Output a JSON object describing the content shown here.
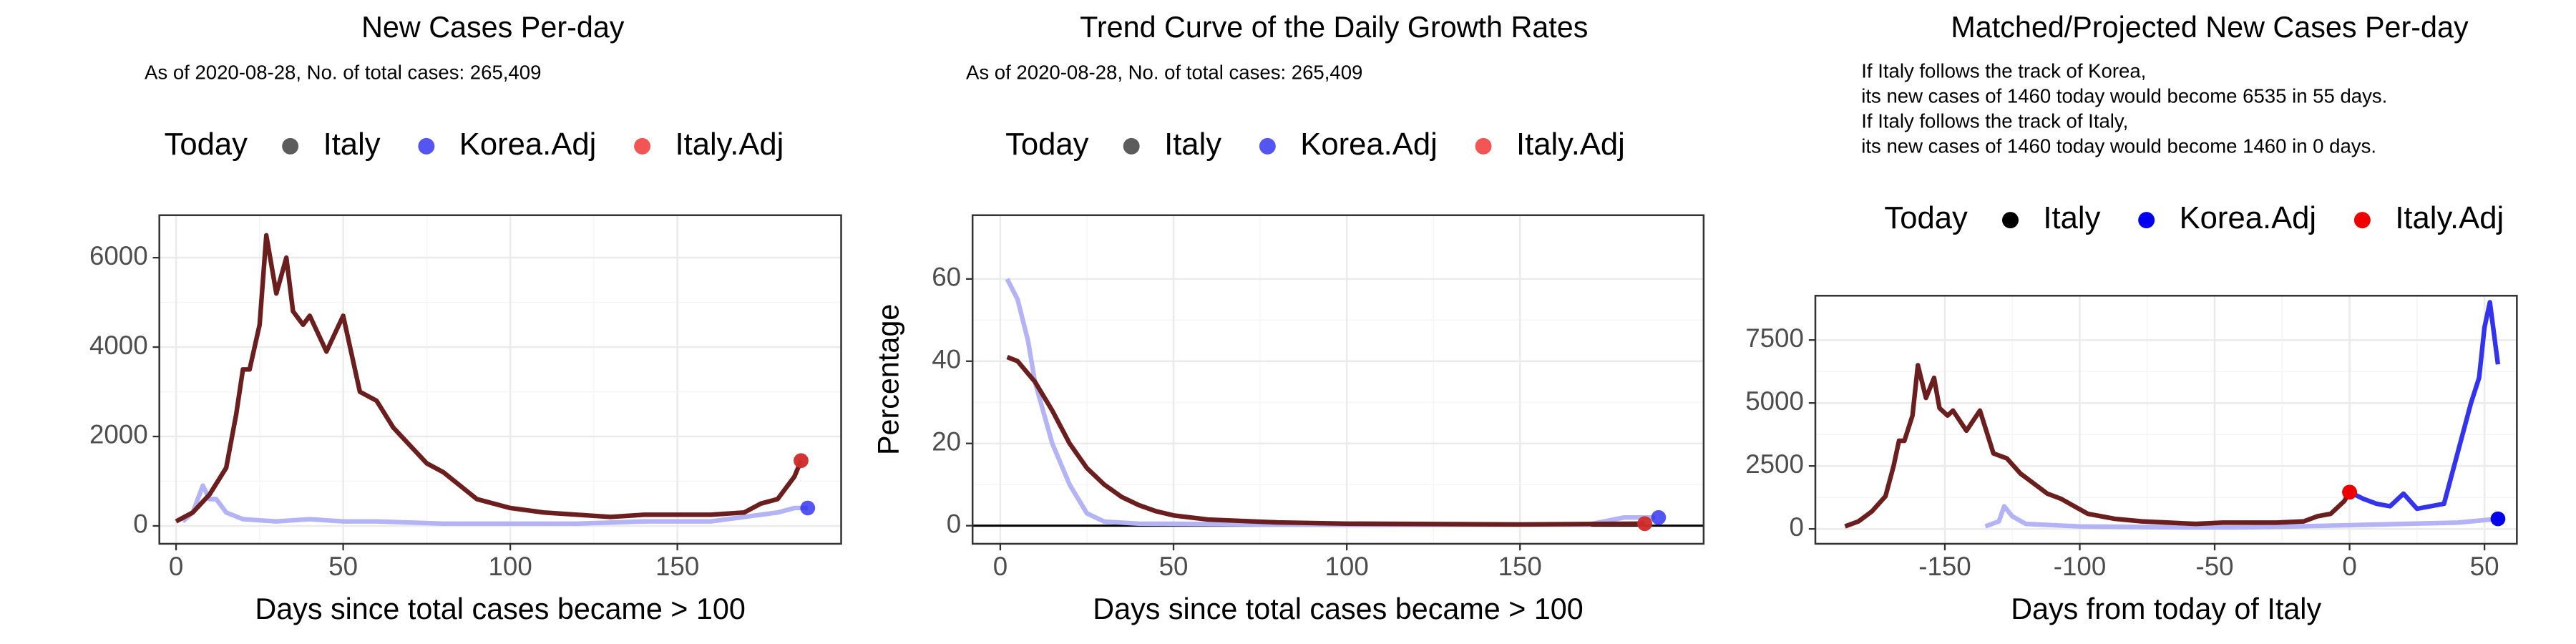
{
  "chart_data": [
    {
      "type": "line",
      "title": "New Cases Per-day",
      "subtitle": [
        "As of 2020-08-28, No. of total cases: 265,409"
      ],
      "xlabel": "Days since total cases became > 100",
      "xlim": [
        -5,
        199
      ],
      "ylim": [
        -400,
        6950
      ],
      "xticks": [
        0,
        50,
        100,
        150
      ],
      "yticks": [
        0,
        2000,
        4000,
        6000
      ],
      "grid": true,
      "legend_title": "Today",
      "series": [
        {
          "color": "#b3b3f5",
          "x": [
            2,
            5,
            8,
            10,
            12,
            15,
            20,
            30,
            40,
            50,
            60,
            80,
            100,
            120,
            140,
            160,
            170,
            180,
            185,
            189
          ],
          "values": [
            100,
            300,
            900,
            600,
            600,
            300,
            150,
            100,
            150,
            100,
            100,
            50,
            50,
            50,
            100,
            100,
            200,
            300,
            400,
            400
          ]
        },
        {
          "color": "#6b1e1e",
          "x": [
            0,
            5,
            10,
            15,
            18,
            20,
            22,
            25,
            27,
            30,
            33,
            35,
            38,
            40,
            45,
            50,
            55,
            60,
            65,
            70,
            75,
            80,
            85,
            90,
            95,
            100,
            110,
            120,
            130,
            140,
            150,
            160,
            170,
            175,
            180,
            185,
            187
          ],
          "values": [
            100,
            300,
            700,
            1300,
            2500,
            3500,
            3500,
            4500,
            6500,
            5200,
            6000,
            4800,
            4500,
            4700,
            3900,
            4700,
            3000,
            2800,
            2200,
            1800,
            1400,
            1200,
            900,
            600,
            500,
            400,
            300,
            250,
            200,
            250,
            250,
            250,
            300,
            500,
            600,
            1100,
            1460
          ]
        }
      ],
      "points": [
        {
          "name": "Italy",
          "color": "#333333",
          "x": 187,
          "y": 1460
        },
        {
          "name": "Korea.Adj",
          "color": "#2a2af0",
          "x": 189,
          "y": 400
        },
        {
          "name": "Italy.Adj",
          "color": "#f02a2a",
          "x": 187,
          "y": 1460
        }
      ]
    },
    {
      "type": "line",
      "title": "Trend Curve of the Daily Growth Rates",
      "subtitle": [
        "As of 2020-08-28, No. of total cases: 265,409"
      ],
      "xlabel": "Days since total cases became > 100",
      "ylabel": "Percentage",
      "xlim": [
        -8,
        203
      ],
      "ylim": [
        -4.4,
        75.5
      ],
      "xticks": [
        0,
        50,
        100,
        150
      ],
      "yticks": [
        0,
        20,
        40,
        60
      ],
      "grid": true,
      "hline": 0,
      "legend_title": "Today",
      "series": [
        {
          "color": "#b3b3f5",
          "x": [
            2,
            5,
            8,
            10,
            15,
            20,
            25,
            30,
            40,
            100,
            170,
            180,
            189
          ],
          "values": [
            60,
            55,
            45,
            35,
            20,
            10,
            3,
            1,
            0.5,
            0.2,
            0.3,
            2,
            2
          ]
        },
        {
          "color": "#6b1e1e",
          "x": [
            2,
            5,
            10,
            15,
            20,
            25,
            30,
            35,
            40,
            45,
            50,
            60,
            80,
            100,
            150,
            186
          ],
          "values": [
            41,
            40,
            35,
            28,
            20,
            14,
            10,
            7,
            5,
            3.5,
            2.5,
            1.5,
            0.8,
            0.5,
            0.3,
            0.5
          ]
        }
      ],
      "points": [
        {
          "name": "Italy",
          "color": "#333333",
          "x": 186,
          "y": 0.5
        },
        {
          "name": "Korea.Adj",
          "color": "#2a2af0",
          "x": 190,
          "y": 2
        },
        {
          "name": "Italy.Adj",
          "color": "#f02a2a",
          "x": 186,
          "y": 0.5
        }
      ]
    },
    {
      "type": "line",
      "title": "Matched/Projected New Cases Per-day",
      "subtitle": [
        "If Italy follows the track of Korea,",
        "its new cases of 1460 today would become 6535 in 55 days.",
        "If Italy follows the track of Italy,",
        "its new cases of 1460 today would become 1460 in 0 days."
      ],
      "xlabel": "Days from today of Italy",
      "xlim": [
        -198,
        62
      ],
      "ylim": [
        -590,
        9260
      ],
      "xticks": [
        -150,
        -100,
        -50,
        0,
        50
      ],
      "yticks": [
        0,
        2500,
        5000,
        7500
      ],
      "grid": true,
      "legend_title": "Today",
      "series": [
        {
          "color": "#b3b3f5",
          "x": [
            -135,
            -130,
            -128,
            -125,
            -120,
            -110,
            -100,
            -80,
            -60,
            -40,
            -20,
            0,
            20,
            40,
            50,
            55
          ],
          "values": [
            100,
            300,
            900,
            500,
            200,
            150,
            100,
            80,
            60,
            60,
            100,
            150,
            200,
            250,
            350,
            400
          ]
        },
        {
          "color": "#6b1e1e",
          "x": [
            -187,
            -182,
            -177,
            -172,
            -169,
            -167,
            -165,
            -162,
            -160,
            -157,
            -154,
            -152,
            -149,
            -147,
            -142,
            -137,
            -132,
            -127,
            -122,
            -117,
            -112,
            -107,
            -102,
            -97,
            -92,
            -87,
            -77,
            -67,
            -57,
            -47,
            -37,
            -27,
            -17,
            -12,
            -7,
            -2,
            0
          ],
          "values": [
            100,
            300,
            700,
            1300,
            2500,
            3500,
            3500,
            4500,
            6500,
            5200,
            6000,
            4800,
            4500,
            4700,
            3900,
            4700,
            3000,
            2800,
            2200,
            1800,
            1400,
            1200,
            900,
            600,
            500,
            400,
            300,
            250,
            200,
            250,
            250,
            250,
            300,
            500,
            600,
            1100,
            1460
          ]
        },
        {
          "color": "#3333ee",
          "x": [
            0,
            5,
            10,
            15,
            20,
            25,
            30,
            35,
            40,
            45,
            48,
            50,
            52,
            55
          ],
          "values": [
            1460,
            1200,
            1000,
            900,
            1400,
            800,
            900,
            1000,
            3000,
            5000,
            6000,
            8000,
            9000,
            6535
          ]
        }
      ],
      "points": [
        {
          "name": "Italy",
          "color": "#000000",
          "x": 0,
          "y": 1460
        },
        {
          "name": "Korea.Adj",
          "color": "#0000ee",
          "x": 55,
          "y": 400
        },
        {
          "name": "Italy.Adj",
          "color": "#ee0000",
          "x": 0,
          "y": 1460
        }
      ]
    }
  ]
}
